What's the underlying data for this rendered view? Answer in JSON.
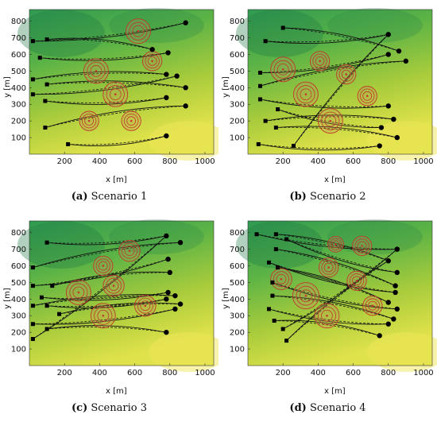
{
  "chart_data": [
    {
      "type": "scatter",
      "caption_letter": "(a)",
      "caption_text": " Scenario 1",
      "xlabel": "x [m]",
      "ylabel": "y [m]",
      "xlim": [
        0,
        1050
      ],
      "ylim": [
        0,
        870
      ],
      "xticks": [
        200,
        400,
        600,
        800,
        1000
      ],
      "yticks": [
        100,
        200,
        300,
        400,
        500,
        600,
        700,
        800
      ],
      "obstacles": [
        {
          "x": 620,
          "y": 740,
          "r": 70
        },
        {
          "x": 700,
          "y": 560,
          "r": 55
        },
        {
          "x": 380,
          "y": 500,
          "r": 70
        },
        {
          "x": 490,
          "y": 360,
          "r": 70
        },
        {
          "x": 340,
          "y": 200,
          "r": 55
        },
        {
          "x": 580,
          "y": 200,
          "r": 55
        }
      ],
      "starts": [
        [
          20,
          680
        ],
        [
          100,
          690
        ],
        [
          60,
          580
        ],
        [
          20,
          450
        ],
        [
          20,
          360
        ],
        [
          100,
          420
        ],
        [
          90,
          320
        ],
        [
          90,
          160
        ],
        [
          220,
          60
        ]
      ],
      "goals": [
        [
          890,
          790
        ],
        [
          700,
          630
        ],
        [
          790,
          610
        ],
        [
          780,
          480
        ],
        [
          840,
          470
        ],
        [
          890,
          400
        ],
        [
          780,
          340
        ],
        [
          890,
          290
        ],
        [
          780,
          110
        ]
      ]
    },
    {
      "type": "scatter",
      "caption_letter": "(b)",
      "caption_text": " Scenario 2",
      "xlabel": "x [m]",
      "ylabel": "y [m]",
      "xlim": [
        0,
        1050
      ],
      "ylim": [
        0,
        870
      ],
      "xticks": [
        200,
        400,
        600,
        800,
        1000
      ],
      "yticks": [
        100,
        200,
        300,
        400,
        500,
        600,
        700,
        800
      ],
      "obstacles": [
        {
          "x": 200,
          "y": 510,
          "r": 70
        },
        {
          "x": 410,
          "y": 560,
          "r": 55
        },
        {
          "x": 560,
          "y": 480,
          "r": 55
        },
        {
          "x": 330,
          "y": 360,
          "r": 70
        },
        {
          "x": 680,
          "y": 350,
          "r": 55
        },
        {
          "x": 470,
          "y": 200,
          "r": 70
        }
      ],
      "starts": [
        [
          100,
          680
        ],
        [
          200,
          760
        ],
        [
          70,
          490
        ],
        [
          70,
          410
        ],
        [
          70,
          330
        ],
        [
          100,
          200
        ],
        [
          170,
          270
        ],
        [
          160,
          160
        ],
        [
          60,
          60
        ],
        [
          260,
          50
        ]
      ],
      "goals": [
        [
          800,
          720
        ],
        [
          860,
          620
        ],
        [
          800,
          600
        ],
        [
          900,
          560
        ],
        [
          800,
          290
        ],
        [
          830,
          210
        ],
        [
          760,
          160
        ],
        [
          850,
          100
        ],
        [
          750,
          50
        ]
      ]
    },
    {
      "type": "scatter",
      "caption_letter": "(c)",
      "caption_text": " Scenario 3",
      "xlabel": "x [m]",
      "ylabel": "y [m]",
      "xlim": [
        0,
        1050
      ],
      "ylim": [
        0,
        870
      ],
      "xticks": [
        200,
        400,
        600,
        800,
        1000
      ],
      "yticks": [
        100,
        200,
        300,
        400,
        500,
        600,
        700,
        800
      ],
      "obstacles": [
        {
          "x": 570,
          "y": 690,
          "r": 60
        },
        {
          "x": 420,
          "y": 600,
          "r": 55
        },
        {
          "x": 480,
          "y": 480,
          "r": 60
        },
        {
          "x": 280,
          "y": 440,
          "r": 70
        },
        {
          "x": 660,
          "y": 360,
          "r": 60
        },
        {
          "x": 420,
          "y": 300,
          "r": 70
        }
      ],
      "starts": [
        [
          100,
          740
        ],
        [
          20,
          590
        ],
        [
          20,
          480
        ],
        [
          130,
          480
        ],
        [
          70,
          410
        ],
        [
          20,
          360
        ],
        [
          100,
          360
        ],
        [
          170,
          310
        ],
        [
          20,
          250
        ],
        [
          100,
          220
        ],
        [
          20,
          160
        ]
      ],
      "goals": [
        [
          780,
          780
        ],
        [
          860,
          740
        ],
        [
          790,
          640
        ],
        [
          800,
          560
        ],
        [
          790,
          440
        ],
        [
          830,
          420
        ],
        [
          780,
          400
        ],
        [
          860,
          370
        ],
        [
          830,
          340
        ],
        [
          780,
          200
        ]
      ]
    },
    {
      "type": "scatter",
      "caption_letter": "(d)",
      "caption_text": " Scenario 4",
      "xlabel": "x [m]",
      "ylabel": "y [m]",
      "xlim": [
        0,
        1050
      ],
      "ylim": [
        0,
        870
      ],
      "xticks": [
        200,
        400,
        600,
        800,
        1000
      ],
      "yticks": [
        100,
        200,
        300,
        400,
        500,
        600,
        700,
        800
      ],
      "obstacles": [
        {
          "x": 500,
          "y": 730,
          "r": 45
        },
        {
          "x": 650,
          "y": 720,
          "r": 55
        },
        {
          "x": 460,
          "y": 590,
          "r": 55
        },
        {
          "x": 190,
          "y": 520,
          "r": 60
        },
        {
          "x": 620,
          "y": 510,
          "r": 55
        },
        {
          "x": 330,
          "y": 420,
          "r": 75
        },
        {
          "x": 710,
          "y": 360,
          "r": 55
        },
        {
          "x": 450,
          "y": 300,
          "r": 70
        }
      ],
      "starts": [
        [
          50,
          790
        ],
        [
          160,
          790
        ],
        [
          220,
          760
        ],
        [
          160,
          700
        ],
        [
          120,
          620
        ],
        [
          170,
          590
        ],
        [
          140,
          500
        ],
        [
          140,
          420
        ],
        [
          120,
          340
        ],
        [
          150,
          270
        ],
        [
          200,
          220
        ],
        [
          220,
          150
        ]
      ],
      "goals": [
        [
          850,
          700
        ],
        [
          800,
          630
        ],
        [
          850,
          560
        ],
        [
          840,
          480
        ],
        [
          840,
          440
        ],
        [
          800,
          380
        ],
        [
          850,
          340
        ],
        [
          830,
          280
        ],
        [
          800,
          250
        ],
        [
          750,
          180
        ]
      ]
    }
  ]
}
